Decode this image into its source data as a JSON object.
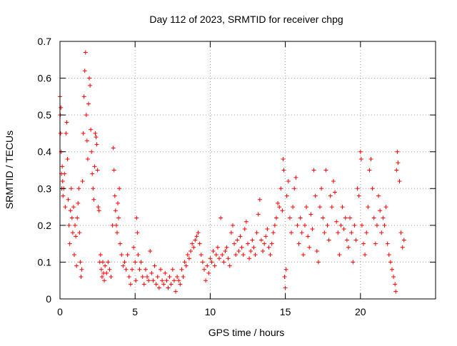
{
  "chart_data": {
    "type": "scatter",
    "title": "Day 112 of 2023, SRMTID for receiver chpg",
    "xlabel": "GPS time / hours",
    "ylabel": "SRMTID / TECUs",
    "xlim": [
      0,
      25
    ],
    "ylim": [
      0,
      0.7
    ],
    "xticks": [
      0,
      5,
      10,
      15,
      20
    ],
    "xtick_labels": [
      "0",
      "5",
      "10",
      "15",
      "20"
    ],
    "yticks": [
      0,
      0.1,
      0.2,
      0.3,
      0.4,
      0.5,
      0.6,
      0.7
    ],
    "ytick_labels": [
      "0",
      "0.1",
      "0.2",
      "0.3",
      "0.4",
      "0.5",
      "0.6",
      "0.7"
    ],
    "grid": true,
    "marker": "plus",
    "marker_color": "#ff0000",
    "series": [
      {
        "name": "SRMTID",
        "points": [
          [
            0.0,
            0.55
          ],
          [
            0.02,
            0.5
          ],
          [
            0.04,
            0.45
          ],
          [
            0.06,
            0.52
          ],
          [
            0.08,
            0.4
          ],
          [
            0.1,
            0.34
          ],
          [
            0.12,
            0.3
          ],
          [
            0.15,
            0.36
          ],
          [
            0.18,
            0.32
          ],
          [
            0.2,
            0.28
          ],
          [
            0.25,
            0.3
          ],
          [
            0.3,
            0.34
          ],
          [
            0.35,
            0.25
          ],
          [
            0.4,
            0.45
          ],
          [
            0.45,
            0.48
          ],
          [
            0.5,
            0.38
          ],
          [
            0.55,
            0.27
          ],
          [
            0.6,
            0.2
          ],
          [
            0.65,
            0.15
          ],
          [
            0.7,
            0.24
          ],
          [
            0.75,
            0.3
          ],
          [
            0.8,
            0.22
          ],
          [
            0.85,
            0.18
          ],
          [
            0.9,
            0.25
          ],
          [
            0.95,
            0.12
          ],
          [
            1.0,
            0.2
          ],
          [
            1.05,
            0.17
          ],
          [
            1.1,
            0.09
          ],
          [
            1.15,
            0.22
          ],
          [
            1.2,
            0.26
          ],
          [
            1.25,
            0.3
          ],
          [
            1.3,
            0.18
          ],
          [
            1.35,
            0.1
          ],
          [
            1.4,
            0.06
          ],
          [
            1.45,
            0.08
          ],
          [
            1.5,
            0.32
          ],
          [
            1.55,
            0.45
          ],
          [
            1.6,
            0.55
          ],
          [
            1.65,
            0.62
          ],
          [
            1.7,
            0.67
          ],
          [
            1.75,
            0.5
          ],
          [
            1.8,
            0.43
          ],
          [
            1.85,
            0.38
          ],
          [
            1.9,
            0.53
          ],
          [
            1.95,
            0.6
          ],
          [
            2.0,
            0.58
          ],
          [
            2.05,
            0.46
          ],
          [
            2.1,
            0.4
          ],
          [
            2.15,
            0.34
          ],
          [
            2.2,
            0.3
          ],
          [
            2.25,
            0.27
          ],
          [
            2.3,
            0.36
          ],
          [
            2.35,
            0.45
          ],
          [
            2.4,
            0.44
          ],
          [
            2.45,
            0.42
          ],
          [
            2.5,
            0.35
          ],
          [
            2.55,
            0.25
          ],
          [
            2.6,
            0.24
          ],
          [
            2.65,
            0.1
          ],
          [
            2.7,
            0.12
          ],
          [
            2.75,
            0.08
          ],
          [
            2.8,
            0.06
          ],
          [
            2.85,
            0.1
          ],
          [
            2.9,
            0.07
          ],
          [
            2.95,
            0.05
          ],
          [
            3.0,
            0.09
          ],
          [
            3.1,
            0.07
          ],
          [
            3.2,
            0.1
          ],
          [
            3.3,
            0.08
          ],
          [
            3.4,
            0.06
          ],
          [
            3.5,
            0.2
          ],
          [
            3.55,
            0.41
          ],
          [
            3.6,
            0.35
          ],
          [
            3.65,
            0.28
          ],
          [
            3.7,
            0.24
          ],
          [
            3.75,
            0.2
          ],
          [
            3.8,
            0.18
          ],
          [
            3.85,
            0.26
          ],
          [
            3.9,
            0.22
          ],
          [
            3.95,
            0.3
          ],
          [
            4.0,
            0.15
          ],
          [
            4.1,
            0.12
          ],
          [
            4.2,
            0.09
          ],
          [
            4.3,
            0.1
          ],
          [
            4.4,
            0.08
          ],
          [
            4.5,
            0.12
          ],
          [
            4.6,
            0.06
          ],
          [
            4.7,
            0.04
          ],
          [
            4.8,
            0.08
          ],
          [
            4.9,
            0.14
          ],
          [
            5.0,
            0.1
          ],
          [
            5.05,
            0.05
          ],
          [
            5.1,
            0.22
          ],
          [
            5.15,
            0.18
          ],
          [
            5.2,
            0.12
          ],
          [
            5.3,
            0.08
          ],
          [
            5.4,
            0.1
          ],
          [
            5.5,
            0.06
          ],
          [
            5.6,
            0.04
          ],
          [
            5.7,
            0.08
          ],
          [
            5.8,
            0.06
          ],
          [
            5.9,
            0.05
          ],
          [
            6.0,
            0.13
          ],
          [
            6.1,
            0.07
          ],
          [
            6.2,
            0.05
          ],
          [
            6.3,
            0.09
          ],
          [
            6.4,
            0.04
          ],
          [
            6.5,
            0.06
          ],
          [
            6.6,
            0.03
          ],
          [
            6.7,
            0.08
          ],
          [
            6.8,
            0.05
          ],
          [
            6.9,
            0.04
          ],
          [
            7.0,
            0.07
          ],
          [
            7.1,
            0.05
          ],
          [
            7.2,
            0.03
          ],
          [
            7.3,
            0.06
          ],
          [
            7.4,
            0.04
          ],
          [
            7.5,
            0.08
          ],
          [
            7.6,
            0.05
          ],
          [
            7.7,
            0.02
          ],
          [
            7.8,
            0.06
          ],
          [
            7.9,
            0.05
          ],
          [
            8.0,
            0.04
          ],
          [
            8.1,
            0.08
          ],
          [
            8.2,
            0.06
          ],
          [
            8.3,
            0.1
          ],
          [
            8.4,
            0.09
          ],
          [
            8.5,
            0.12
          ],
          [
            8.6,
            0.11
          ],
          [
            8.7,
            0.13
          ],
          [
            8.8,
            0.15
          ],
          [
            8.9,
            0.14
          ],
          [
            9.0,
            0.16
          ],
          [
            9.1,
            0.17
          ],
          [
            9.2,
            0.18
          ],
          [
            9.3,
            0.15
          ],
          [
            9.4,
            0.12
          ],
          [
            9.5,
            0.1
          ],
          [
            9.6,
            0.08
          ],
          [
            9.7,
            0.05
          ],
          [
            9.8,
            0.09
          ],
          [
            9.9,
            0.07
          ],
          [
            10.0,
            0.11
          ],
          [
            10.1,
            0.1
          ],
          [
            10.2,
            0.13
          ],
          [
            10.3,
            0.09
          ],
          [
            10.4,
            0.12
          ],
          [
            10.5,
            0.14
          ],
          [
            10.6,
            0.11
          ],
          [
            10.7,
            0.22
          ],
          [
            10.8,
            0.12
          ],
          [
            10.9,
            0.1
          ],
          [
            11.0,
            0.13
          ],
          [
            11.1,
            0.14
          ],
          [
            11.2,
            0.11
          ],
          [
            11.3,
            0.09
          ],
          [
            11.4,
            0.18
          ],
          [
            11.5,
            0.2
          ],
          [
            11.6,
            0.15
          ],
          [
            11.7,
            0.12
          ],
          [
            11.8,
            0.16
          ],
          [
            11.9,
            0.13
          ],
          [
            12.0,
            0.17
          ],
          [
            12.1,
            0.14
          ],
          [
            12.2,
            0.12
          ],
          [
            12.3,
            0.19
          ],
          [
            12.4,
            0.21
          ],
          [
            12.5,
            0.15
          ],
          [
            12.6,
            0.11
          ],
          [
            12.7,
            0.13
          ],
          [
            12.8,
            0.16
          ],
          [
            12.9,
            0.14
          ],
          [
            13.0,
            0.12
          ],
          [
            13.1,
            0.18
          ],
          [
            13.2,
            0.23
          ],
          [
            13.3,
            0.27
          ],
          [
            13.4,
            0.16
          ],
          [
            13.5,
            0.13
          ],
          [
            13.6,
            0.15
          ],
          [
            13.7,
            0.17
          ],
          [
            13.8,
            0.19
          ],
          [
            13.9,
            0.14
          ],
          [
            14.0,
            0.12
          ],
          [
            14.1,
            0.15
          ],
          [
            14.2,
            0.18
          ],
          [
            14.3,
            0.2
          ],
          [
            14.4,
            0.22
          ],
          [
            14.5,
            0.26
          ],
          [
            14.6,
            0.25
          ],
          [
            14.7,
            0.3
          ],
          [
            14.8,
            0.24
          ],
          [
            14.85,
            0.38
          ],
          [
            14.9,
            0.35
          ],
          [
            14.95,
            0.06
          ],
          [
            15.0,
            0.03
          ],
          [
            15.05,
            0.08
          ],
          [
            15.1,
            0.28
          ],
          [
            15.2,
            0.32
          ],
          [
            15.3,
            0.22
          ],
          [
            15.4,
            0.18
          ],
          [
            15.5,
            0.25
          ],
          [
            15.6,
            0.3
          ],
          [
            15.7,
            0.33
          ],
          [
            15.8,
            0.2
          ],
          [
            15.9,
            0.15
          ],
          [
            16.0,
            0.22
          ],
          [
            16.1,
            0.18
          ],
          [
            16.2,
            0.12
          ],
          [
            16.3,
            0.2
          ],
          [
            16.4,
            0.25
          ],
          [
            16.5,
            0.17
          ],
          [
            16.6,
            0.14
          ],
          [
            16.7,
            0.23
          ],
          [
            16.8,
            0.19
          ],
          [
            16.9,
            0.35
          ],
          [
            17.0,
            0.28
          ],
          [
            17.1,
            0.13
          ],
          [
            17.2,
            0.1
          ],
          [
            17.3,
            0.25
          ],
          [
            17.4,
            0.3
          ],
          [
            17.5,
            0.22
          ],
          [
            17.6,
            0.18
          ],
          [
            17.7,
            0.35
          ],
          [
            17.8,
            0.2
          ],
          [
            17.9,
            0.16
          ],
          [
            18.0,
            0.28
          ],
          [
            18.1,
            0.25
          ],
          [
            18.2,
            0.32
          ],
          [
            18.3,
            0.29
          ],
          [
            18.4,
            0.21
          ],
          [
            18.5,
            0.18
          ],
          [
            18.6,
            0.12
          ],
          [
            18.7,
            0.2
          ],
          [
            18.8,
            0.25
          ],
          [
            18.9,
            0.19
          ],
          [
            19.0,
            0.22
          ],
          [
            19.1,
            0.16
          ],
          [
            19.2,
            0.14
          ],
          [
            19.3,
            0.22
          ],
          [
            19.4,
            0.18
          ],
          [
            19.5,
            0.1
          ],
          [
            19.6,
            0.2
          ],
          [
            19.7,
            0.16
          ],
          [
            19.8,
            0.3
          ],
          [
            19.9,
            0.28
          ],
          [
            20.0,
            0.4
          ],
          [
            20.05,
            0.38
          ],
          [
            20.1,
            0.2
          ],
          [
            20.2,
            0.15
          ],
          [
            20.3,
            0.12
          ],
          [
            20.4,
            0.18
          ],
          [
            20.5,
            0.25
          ],
          [
            20.6,
            0.35
          ],
          [
            20.7,
            0.38
          ],
          [
            20.8,
            0.3
          ],
          [
            20.9,
            0.22
          ],
          [
            21.0,
            0.15
          ],
          [
            21.1,
            0.2
          ],
          [
            21.2,
            0.28
          ],
          [
            21.3,
            0.24
          ],
          [
            21.4,
            0.18
          ],
          [
            21.5,
            0.22
          ],
          [
            21.6,
            0.2
          ],
          [
            21.7,
            0.25
          ],
          [
            21.8,
            0.15
          ],
          [
            21.9,
            0.12
          ],
          [
            22.0,
            0.1
          ],
          [
            22.1,
            0.08
          ],
          [
            22.2,
            0.06
          ],
          [
            22.3,
            0.04
          ],
          [
            22.35,
            0.02
          ],
          [
            22.4,
            0.35
          ],
          [
            22.45,
            0.4
          ],
          [
            22.5,
            0.37
          ],
          [
            22.6,
            0.32
          ],
          [
            22.7,
            0.18
          ],
          [
            22.8,
            0.14
          ],
          [
            22.9,
            0.16
          ]
        ]
      }
    ]
  }
}
